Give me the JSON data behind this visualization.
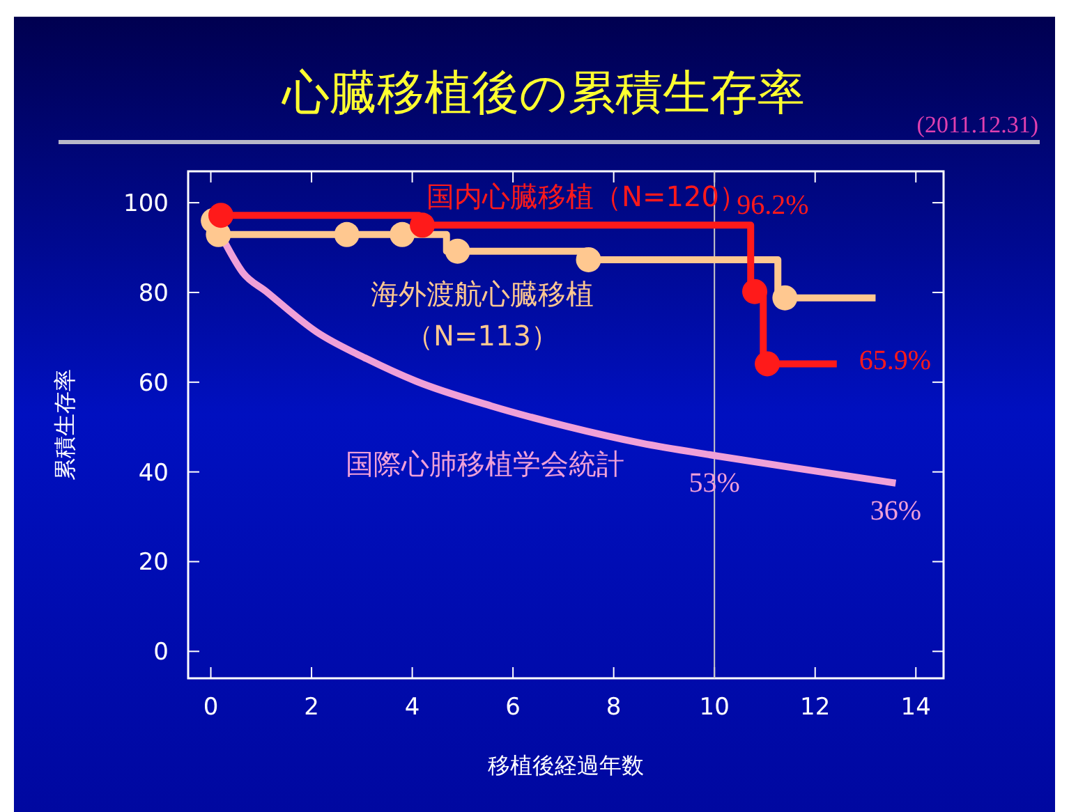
{
  "chart_data": {
    "type": "step",
    "title": "心臓移植後の累積生存率",
    "xlabel": "移植後経過年数",
    "ylabel": "累積生存率",
    "xlim": [
      -0.45,
      14.55
    ],
    "ylim": [
      -6,
      107
    ],
    "xticks": [
      0,
      2,
      4,
      6,
      8,
      10,
      12,
      14
    ],
    "yticks": [
      0,
      20,
      40,
      60,
      80,
      100
    ],
    "grid": false,
    "marker": "none",
    "series": [
      {
        "name": "海外渡航心臓移植（N=113）",
        "color": "#ffc890",
        "x": [
          0.05,
          0.15,
          4.68,
          7.45,
          11.26,
          13.2
        ],
        "values": [
          96,
          92.9,
          89.2,
          87.3,
          78.8,
          78.8
        ]
      },
      {
        "name": "国内心臓移植（N=120）",
        "color": "#ff1a1a",
        "x": [
          0.2,
          4.13,
          10.72,
          10.97,
          12.43
        ],
        "values": [
          97.2,
          95.0,
          80.2,
          64.1,
          64.1
        ]
      },
      {
        "name": "国際心肺移植学会統計",
        "color": "#f0a0d8",
        "type": "line",
        "x": [
          0.28,
          0.63,
          1.1,
          2.1,
          3.1,
          4.08,
          5.57,
          7.05,
          8.55,
          10.03,
          12.0,
          13.6
        ],
        "values": [
          91.1,
          84.5,
          80.2,
          71.2,
          65.2,
          60.2,
          54.7,
          50.2,
          46.4,
          43.6,
          40.2,
          37.5
        ]
      },
      {
        "color": "#ffc890",
        "type": "scatter",
        "marker": "circle",
        "x": [
          0.05,
          0.15,
          2.7,
          3.8,
          4.9,
          7.5,
          11.4
        ],
        "values": [
          96,
          92.9,
          92.9,
          92.9,
          89.2,
          87.3,
          78.8
        ]
      },
      {
        "color": "#ff1a1a",
        "type": "scatter",
        "marker": "circle",
        "x": [
          0.2,
          4.2,
          10.8,
          11.05
        ],
        "values": [
          97.2,
          95.0,
          80.2,
          64.1
        ]
      }
    ],
    "ref_lines": [
      {
        "axis": "x",
        "value": 10,
        "color": "#c8c8c8"
      }
    ],
    "annotations": [
      "(2011.12.31)",
      {
        "text": "96.2%",
        "x": 10,
        "y": 95
      },
      {
        "text": "65.9%",
        "x": 12.43,
        "y": 64.1
      },
      {
        "text": "53%",
        "x": 10,
        "y": 43.6
      },
      {
        "text": "36%",
        "x": 13.6,
        "y": 37.5
      }
    ]
  }
}
